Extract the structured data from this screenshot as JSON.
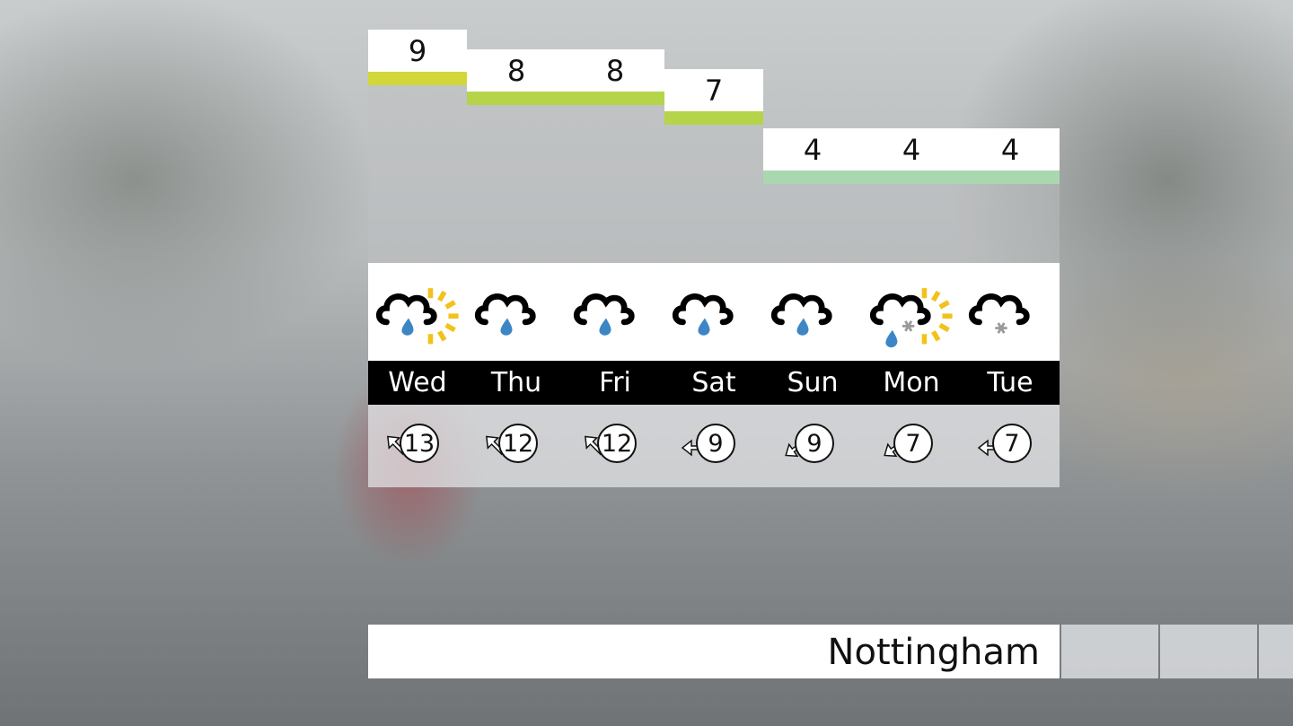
{
  "location": "Nottingham",
  "colors": {
    "warm_bar": "#b5d44a",
    "warmer_bar": "#d3d83a",
    "cool_bar": "#a9d8b0",
    "sun": "#f2c21b",
    "rain": "#3d86c6",
    "snow": "#9a9a9a"
  },
  "days": [
    {
      "day": "Wed",
      "temp": "9",
      "wind": "13",
      "wind_direction": "north-west",
      "icon": "sunny-intervals-light-rain",
      "bar": "#d3d83a"
    },
    {
      "day": "Thu",
      "temp": "8",
      "wind": "12",
      "wind_direction": "north-west",
      "icon": "light-rain",
      "bar": "#b5d44a"
    },
    {
      "day": "Fri",
      "temp": "8",
      "wind": "12",
      "wind_direction": "north-west",
      "icon": "light-rain",
      "bar": "#b5d44a"
    },
    {
      "day": "Sat",
      "temp": "7",
      "wind": "9",
      "wind_direction": "west",
      "icon": "light-rain",
      "bar": "#b5d44a"
    },
    {
      "day": "Sun",
      "temp": "4",
      "wind": "9",
      "wind_direction": "south-west",
      "icon": "light-rain",
      "bar": "#a9d8b0"
    },
    {
      "day": "Mon",
      "temp": "4",
      "wind": "7",
      "wind_direction": "south-west",
      "icon": "sunny-intervals-sleet",
      "bar": "#a9d8b0"
    },
    {
      "day": "Tue",
      "temp": "4",
      "wind": "7",
      "wind_direction": "west",
      "icon": "light-snow",
      "bar": "#a9d8b0"
    }
  ]
}
